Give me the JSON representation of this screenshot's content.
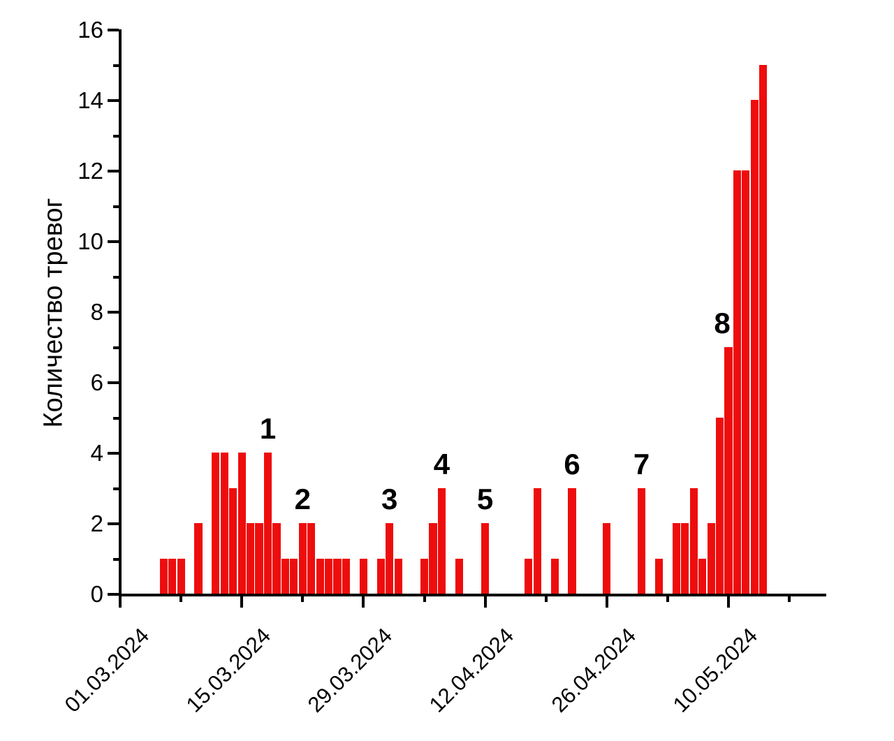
{
  "chart_data": {
    "type": "bar",
    "title": "",
    "xlabel": "",
    "ylabel": "Количество тревог",
    "ylim": [
      0,
      16
    ],
    "grid": false,
    "legend": "none",
    "bar_color": "#ee0d0d",
    "axis_color": "#000000",
    "y_major_ticks": [
      0,
      2,
      4,
      6,
      8,
      10,
      12,
      14,
      16
    ],
    "y_minor_ticks": [
      1,
      3,
      5,
      7,
      9,
      11,
      13,
      15
    ],
    "x_start_date": "01.03.2024",
    "x_major_ticks": [
      {
        "day": 0,
        "label": "01.03.2024"
      },
      {
        "day": 14,
        "label": "15.03.2024"
      },
      {
        "day": 28,
        "label": "29.03.2024"
      },
      {
        "day": 42,
        "label": "12.04.2024"
      },
      {
        "day": 56,
        "label": "26.04.2024"
      },
      {
        "day": 70,
        "label": "10.05.2024"
      }
    ],
    "x_minor_tick_days": [
      7,
      21,
      35,
      49,
      63,
      77
    ],
    "bars": [
      {
        "date": "06.03.2024",
        "day": 5,
        "value": 1
      },
      {
        "date": "07.03.2024",
        "day": 6,
        "value": 1
      },
      {
        "date": "08.03.2024",
        "day": 7,
        "value": 1
      },
      {
        "date": "10.03.2024",
        "day": 9,
        "value": 2
      },
      {
        "date": "12.03.2024",
        "day": 11,
        "value": 4
      },
      {
        "date": "13.03.2024",
        "day": 12,
        "value": 4
      },
      {
        "date": "14.03.2024",
        "day": 13,
        "value": 3
      },
      {
        "date": "15.03.2024",
        "day": 14,
        "value": 4
      },
      {
        "date": "16.03.2024",
        "day": 15,
        "value": 2
      },
      {
        "date": "17.03.2024",
        "day": 16,
        "value": 2
      },
      {
        "date": "18.03.2024",
        "day": 17,
        "value": 4
      },
      {
        "date": "19.03.2024",
        "day": 18,
        "value": 2
      },
      {
        "date": "20.03.2024",
        "day": 19,
        "value": 1
      },
      {
        "date": "21.03.2024",
        "day": 20,
        "value": 1
      },
      {
        "date": "22.03.2024",
        "day": 21,
        "value": 2
      },
      {
        "date": "23.03.2024",
        "day": 22,
        "value": 2
      },
      {
        "date": "24.03.2024",
        "day": 23,
        "value": 1
      },
      {
        "date": "25.03.2024",
        "day": 24,
        "value": 1
      },
      {
        "date": "26.03.2024",
        "day": 25,
        "value": 1
      },
      {
        "date": "27.03.2024",
        "day": 26,
        "value": 1
      },
      {
        "date": "29.03.2024",
        "day": 28,
        "value": 1
      },
      {
        "date": "31.03.2024",
        "day": 30,
        "value": 1
      },
      {
        "date": "01.04.2024",
        "day": 31,
        "value": 2
      },
      {
        "date": "02.04.2024",
        "day": 32,
        "value": 1
      },
      {
        "date": "05.04.2024",
        "day": 35,
        "value": 1
      },
      {
        "date": "06.04.2024",
        "day": 36,
        "value": 2
      },
      {
        "date": "07.04.2024",
        "day": 37,
        "value": 3
      },
      {
        "date": "09.04.2024",
        "day": 39,
        "value": 1
      },
      {
        "date": "12.04.2024",
        "day": 42,
        "value": 2
      },
      {
        "date": "17.04.2024",
        "day": 47,
        "value": 1
      },
      {
        "date": "18.04.2024",
        "day": 48,
        "value": 3
      },
      {
        "date": "20.04.2024",
        "day": 50,
        "value": 1
      },
      {
        "date": "22.04.2024",
        "day": 52,
        "value": 3
      },
      {
        "date": "26.04.2024",
        "day": 56,
        "value": 2
      },
      {
        "date": "30.04.2024",
        "day": 60,
        "value": 3
      },
      {
        "date": "02.05.2024",
        "day": 62,
        "value": 1
      },
      {
        "date": "04.05.2024",
        "day": 64,
        "value": 2
      },
      {
        "date": "05.05.2024",
        "day": 65,
        "value": 2
      },
      {
        "date": "06.05.2024",
        "day": 66,
        "value": 3
      },
      {
        "date": "07.05.2024",
        "day": 67,
        "value": 1
      },
      {
        "date": "08.05.2024",
        "day": 68,
        "value": 2
      },
      {
        "date": "09.05.2024",
        "day": 69,
        "value": 5
      },
      {
        "date": "10.05.2024",
        "day": 70,
        "value": 7
      },
      {
        "date": "11.05.2024",
        "day": 71,
        "value": 12
      },
      {
        "date": "12.05.2024",
        "day": 72,
        "value": 12
      },
      {
        "date": "13.05.2024",
        "day": 73,
        "value": 14
      },
      {
        "date": "14.05.2024",
        "day": 74,
        "value": 15
      }
    ],
    "annotations": [
      {
        "label": "1",
        "date": "18.03.2024",
        "day": 17,
        "value": 4
      },
      {
        "label": "2",
        "date": "22.03.2024",
        "day": 21,
        "value": 2
      },
      {
        "label": "3",
        "date": "01.04.2024",
        "day": 31,
        "value": 2
      },
      {
        "label": "4",
        "date": "07.04.2024",
        "day": 37,
        "value": 3
      },
      {
        "label": "5",
        "date": "12.04.2024",
        "day": 42,
        "value": 2
      },
      {
        "label": "6",
        "date": "22.04.2024",
        "day": 52,
        "value": 3
      },
      {
        "label": "7",
        "date": "30.04.2024",
        "day": 60,
        "value": 3
      },
      {
        "label": "8",
        "date": "10.05.2024",
        "day": 70,
        "value": 7
      }
    ]
  }
}
